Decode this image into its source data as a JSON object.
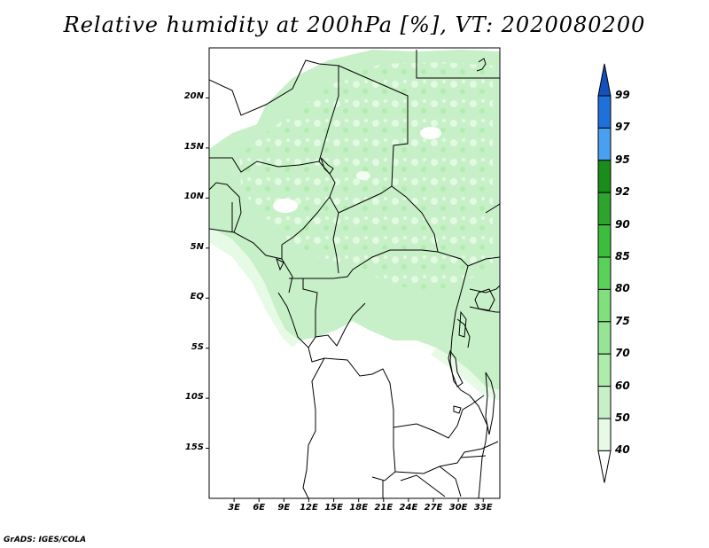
{
  "title": "Relative humidity at 200hPa [%], VT: 2020080200",
  "credit": "GrADS: IGES/COLA",
  "lat_ticks": [
    {
      "label": "20N",
      "lat": 20
    },
    {
      "label": "15N",
      "lat": 15
    },
    {
      "label": "10N",
      "lat": 10
    },
    {
      "label": "5N",
      "lat": 5
    },
    {
      "label": "EQ",
      "lat": 0
    },
    {
      "label": "5S",
      "lat": -5
    },
    {
      "label": "10S",
      "lat": -10
    },
    {
      "label": "15S",
      "lat": -15
    }
  ],
  "lon_ticks": [
    {
      "label": "3E",
      "lon": 3
    },
    {
      "label": "6E",
      "lon": 6
    },
    {
      "label": "9E",
      "lon": 9
    },
    {
      "label": "12E",
      "lon": 12
    },
    {
      "label": "15E",
      "lon": 15
    },
    {
      "label": "18E",
      "lon": 18
    },
    {
      "label": "21E",
      "lon": 21
    },
    {
      "label": "24E",
      "lon": 24
    },
    {
      "label": "27E",
      "lon": 27
    },
    {
      "label": "30E",
      "lon": 30
    },
    {
      "label": "33E",
      "lon": 33
    }
  ],
  "map_extent": {
    "lon_min": 0,
    "lon_max": 35,
    "lat_min": -20,
    "lat_max": 25
  },
  "colorbar": {
    "levels": [
      "40",
      "50",
      "60",
      "70",
      "75",
      "80",
      "85",
      "90",
      "92",
      "95",
      "97",
      "99"
    ],
    "colors": [
      "#ffffff",
      "#e6fae6",
      "#c8f0c8",
      "#aeecac",
      "#96e496",
      "#80e07c",
      "#5ad25a",
      "#3cbe3c",
      "#2da52d",
      "#1a8c1a",
      "#4aa0f0",
      "#2070dc",
      "#1450be"
    ]
  },
  "chart_data": {
    "type": "heatmap",
    "title": "Relative humidity at 200hPa [%], VT: 2020080200",
    "variable": "Relative humidity",
    "units": "%",
    "level": "200hPa",
    "valid_time": "2020080200",
    "x_range": [
      0,
      35
    ],
    "y_range": [
      -20,
      25
    ],
    "contour_levels": [
      40,
      50,
      60,
      70,
      75,
      80,
      85,
      90,
      92,
      95,
      97,
      99
    ]
  }
}
